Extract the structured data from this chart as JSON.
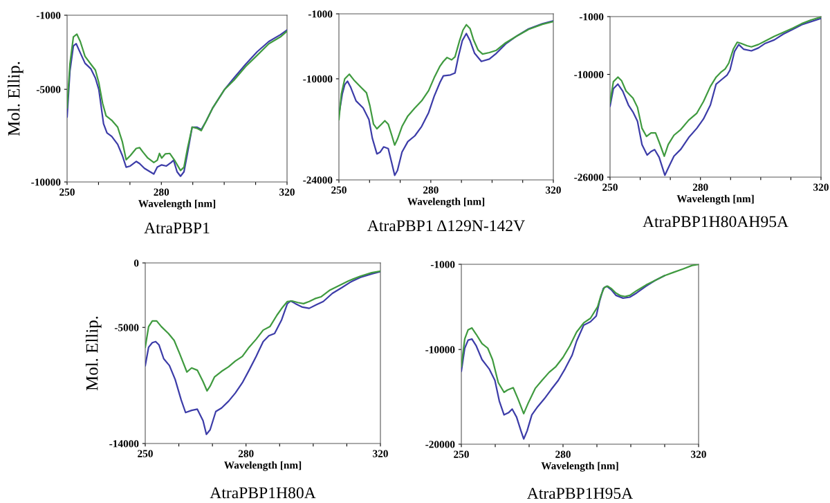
{
  "chart_data": [
    {
      "type": "line",
      "title": "AtraPBP1",
      "xlabel": "Wavelength [nm]",
      "ylabel": "Mol. Ellip.",
      "xlim": [
        250,
        320
      ],
      "ylim": [
        -10000,
        -1000
      ],
      "xticks": [
        250,
        {
          "value": 260,
          "label": null
        },
        {
          "value": 270,
          "label": null
        },
        280,
        {
          "value": 290,
          "label": null
        },
        {
          "value": 300,
          "label": null
        },
        {
          "value": 310,
          "label": null
        },
        320
      ],
      "yticks": [
        -10000,
        -5000,
        -1000
      ],
      "grid": false,
      "line_style": "solid",
      "series": [
        {
          "color": "#3f9a3f",
          "x": [
            250.0,
            250.9,
            252.0,
            253.1,
            254.2,
            255.7,
            257.6,
            259.0,
            260.1,
            261.3,
            262.4,
            264.2,
            266.1,
            267.6,
            268.8,
            270.1,
            272.0,
            273.1,
            274.2,
            275.7,
            277.6,
            278.7,
            279.4,
            280.1,
            281.3,
            282.7,
            284.2,
            286.1,
            287.2,
            288.3,
            289.8,
            291.3,
            292.7,
            294.2,
            296.4,
            300.1,
            303.1,
            306.8,
            310.5,
            314.2,
            317.9,
            320.0
          ],
          "values": [
            -6000,
            -3650,
            -2170,
            -2020,
            -2420,
            -3220,
            -3650,
            -3960,
            -4640,
            -5750,
            -6430,
            -6670,
            -7040,
            -7840,
            -8800,
            -8580,
            -8190,
            -8150,
            -8400,
            -8710,
            -8950,
            -8830,
            -8460,
            -8710,
            -8480,
            -8460,
            -8830,
            -9380,
            -9200,
            -8210,
            -7040,
            -7100,
            -7230,
            -6730,
            -5990,
            -5010,
            -4510,
            -3770,
            -3160,
            -2540,
            -2170,
            -1860
          ]
        },
        {
          "color": "#3c3ca8",
          "x": [
            250.0,
            250.9,
            252.0,
            252.9,
            254.2,
            255.7,
            257.6,
            259.0,
            260.1,
            261.6,
            262.7,
            264.2,
            266.1,
            267.6,
            268.8,
            270.1,
            272.0,
            273.1,
            274.6,
            276.4,
            277.6,
            278.7,
            280.1,
            281.6,
            283.1,
            283.9,
            285.0,
            286.1,
            287.2,
            288.3,
            289.8,
            291.3,
            292.7,
            294.2,
            296.4,
            300.1,
            303.1,
            306.8,
            310.5,
            314.2,
            317.9,
            320.0
          ],
          "values": [
            -6490,
            -4020,
            -2660,
            -2540,
            -3030,
            -3590,
            -3900,
            -4390,
            -5010,
            -6860,
            -7350,
            -7540,
            -7970,
            -8580,
            -9200,
            -9140,
            -8890,
            -9010,
            -9260,
            -9450,
            -9570,
            -9200,
            -9080,
            -9140,
            -8950,
            -8830,
            -9450,
            -9690,
            -9450,
            -8460,
            -7040,
            -7040,
            -7170,
            -6730,
            -5990,
            -5010,
            -4390,
            -3650,
            -2970,
            -2420,
            -2050,
            -1800
          ]
        }
      ]
    },
    {
      "type": "line",
      "title": "AtraPBP1 Δ129N-142V",
      "xlabel": "Wavelength [nm]",
      "xlim": [
        250,
        320
      ],
      "ylim": [
        -24000,
        -1000
      ],
      "xticks": [
        250,
        {
          "value": 260,
          "label": null
        },
        {
          "value": 270,
          "label": null
        },
        280,
        {
          "value": 290,
          "label": null
        },
        {
          "value": 300,
          "label": null
        },
        {
          "value": 310,
          "label": null
        },
        320
      ],
      "yticks": [
        -24000,
        -10000,
        -1000
      ],
      "grid": false,
      "line_style": "solid",
      "series": [
        {
          "color": "#3f9a3f",
          "x": [
            250.0,
            250.8,
            251.9,
            253.4,
            254.9,
            257.1,
            259.0,
            260.1,
            261.3,
            262.4,
            263.9,
            265.0,
            266.1,
            267.3,
            268.2,
            269.1,
            270.6,
            272.5,
            274.8,
            277.0,
            279.3,
            281.1,
            283.0,
            284.1,
            285.3,
            286.8,
            287.9,
            289.4,
            290.5,
            291.6,
            292.8,
            293.9,
            295.4,
            296.9,
            299.1,
            301.4,
            304.4,
            308.1,
            311.9,
            316.4,
            320.0
          ],
          "values": [
            -15640,
            -12100,
            -10010,
            -9360,
            -10170,
            -11130,
            -11940,
            -13710,
            -16280,
            -16920,
            -16280,
            -15800,
            -16280,
            -17890,
            -19180,
            -18370,
            -16600,
            -15150,
            -14030,
            -13060,
            -11620,
            -9850,
            -8240,
            -7590,
            -7050,
            -7370,
            -6950,
            -4700,
            -3250,
            -2510,
            -3030,
            -4540,
            -5990,
            -6570,
            -6370,
            -6050,
            -5020,
            -4060,
            -3160,
            -2450,
            -2060
          ]
        },
        {
          "color": "#3c3ca8",
          "x": [
            250.0,
            251.1,
            251.9,
            252.8,
            253.8,
            255.6,
            257.9,
            259.8,
            260.9,
            262.4,
            263.5,
            264.6,
            266.1,
            267.3,
            268.2,
            269.1,
            270.6,
            272.5,
            274.8,
            277.0,
            279.3,
            281.1,
            283.0,
            284.1,
            286.4,
            287.9,
            289.0,
            290.3,
            291.6,
            292.8,
            294.3,
            296.5,
            299.1,
            301.4,
            304.4,
            308.1,
            311.9,
            316.4,
            320.0
          ],
          "values": [
            -14990,
            -12100,
            -10810,
            -10330,
            -11130,
            -13060,
            -14030,
            -15640,
            -18210,
            -20400,
            -20140,
            -19430,
            -19660,
            -21750,
            -23360,
            -22710,
            -20140,
            -18690,
            -17890,
            -16600,
            -14670,
            -12420,
            -10490,
            -9590,
            -9460,
            -9200,
            -6950,
            -4700,
            -3730,
            -4700,
            -6470,
            -7590,
            -7270,
            -6470,
            -5180,
            -4060,
            -3090,
            -2380,
            -1970
          ]
        }
      ]
    },
    {
      "type": "line",
      "title": "AtraPBP1H80AH95A",
      "xlabel": "Wavelength [nm]",
      "xlim": [
        250,
        320
      ],
      "ylim": [
        -26000,
        -1000
      ],
      "xticks": [
        250,
        {
          "value": 260,
          "label": null
        },
        {
          "value": 270,
          "label": null
        },
        280,
        {
          "value": 290,
          "label": null
        },
        {
          "value": 300,
          "label": null
        },
        {
          "value": 310,
          "label": null
        },
        320
      ],
      "yticks": [
        -26000,
        -10000,
        -1000
      ],
      "grid": false,
      "line_style": "solid",
      "series": [
        {
          "color": "#3f9a3f",
          "x": [
            250.0,
            251.1,
            252.6,
            253.8,
            255.3,
            257.6,
            259.1,
            260.6,
            262.1,
            263.6,
            265.1,
            266.3,
            268.0,
            269.3,
            271.2,
            273.5,
            276.1,
            278.8,
            281.0,
            283.3,
            285.2,
            286.7,
            288.2,
            289.4,
            290.9,
            292.2,
            293.5,
            295.4,
            296.9,
            299.2,
            301.5,
            304.5,
            307.5,
            310.6,
            313.6,
            316.6,
            320.0
          ],
          "values": [
            -14410,
            -11140,
            -10420,
            -10960,
            -12590,
            -13680,
            -15130,
            -18390,
            -19660,
            -19120,
            -19120,
            -20560,
            -22740,
            -20930,
            -19480,
            -18570,
            -17120,
            -16040,
            -14220,
            -11870,
            -10420,
            -9700,
            -9150,
            -8250,
            -6070,
            -4990,
            -5170,
            -5530,
            -5710,
            -5350,
            -4800,
            -4080,
            -3460,
            -2810,
            -2090,
            -1540,
            -1070
          ]
        },
        {
          "color": "#3c3ca8",
          "x": [
            250.0,
            251.1,
            252.6,
            254.2,
            256.1,
            257.6,
            259.1,
            260.6,
            262.3,
            263.6,
            264.8,
            266.3,
            268.2,
            269.7,
            271.2,
            273.5,
            276.1,
            278.8,
            281.0,
            283.3,
            285.2,
            287.1,
            288.8,
            289.8,
            291.3,
            292.7,
            294.3,
            296.9,
            299.2,
            301.5,
            304.5,
            307.5,
            310.6,
            313.6,
            316.6,
            320.0
          ],
          "values": [
            -14950,
            -12230,
            -11510,
            -12590,
            -14770,
            -15850,
            -17300,
            -20930,
            -22560,
            -22010,
            -21720,
            -22920,
            -25710,
            -24190,
            -22740,
            -21650,
            -19840,
            -18390,
            -16940,
            -14770,
            -11510,
            -10780,
            -10130,
            -9330,
            -6430,
            -5350,
            -6070,
            -6330,
            -5890,
            -5170,
            -4620,
            -3720,
            -2990,
            -2270,
            -1800,
            -1290
          ]
        }
      ]
    },
    {
      "type": "line",
      "title": "AtraPBP1H80A",
      "xlabel": "Wavelength [nm]",
      "ylabel": "Mol. Ellip.",
      "xlim": [
        250,
        320
      ],
      "ylim": [
        -14000,
        0
      ],
      "xticks": [
        250,
        {
          "value": 260,
          "label": null
        },
        {
          "value": 270,
          "label": null
        },
        280,
        {
          "value": 290,
          "label": null
        },
        {
          "value": 300,
          "label": null
        },
        {
          "value": 310,
          "label": null
        },
        320
      ],
      "yticks": [
        -14000,
        -5000,
        0
      ],
      "grid": false,
      "line_style": "solid",
      "series": [
        {
          "color": "#3f9a3f",
          "x": [
            250.0,
            251.0,
            252.1,
            253.4,
            254.8,
            256.9,
            258.6,
            260.3,
            262.4,
            263.8,
            265.5,
            267.2,
            268.4,
            269.3,
            270.6,
            272.7,
            274.8,
            276.8,
            278.9,
            280.9,
            283.0,
            285.1,
            287.1,
            289.2,
            290.9,
            292.3,
            293.7,
            295.4,
            297.1,
            298.8,
            300.5,
            302.3,
            305.0,
            307.8,
            310.5,
            314.0,
            317.4,
            320.0
          ],
          "values": [
            -6540,
            -4940,
            -4500,
            -4500,
            -4940,
            -5470,
            -6010,
            -7070,
            -8460,
            -8140,
            -8320,
            -9200,
            -9920,
            -9560,
            -8850,
            -8410,
            -8050,
            -7610,
            -7250,
            -6540,
            -5920,
            -5210,
            -4940,
            -4050,
            -3430,
            -2990,
            -2950,
            -3070,
            -3160,
            -2990,
            -2770,
            -2630,
            -2100,
            -1740,
            -1390,
            -1030,
            -760,
            -640
          ]
        },
        {
          "color": "#3c3ca8",
          "x": [
            250.0,
            251.0,
            252.1,
            253.1,
            254.1,
            255.5,
            257.2,
            258.9,
            260.7,
            262.0,
            263.8,
            265.5,
            267.2,
            268.2,
            269.3,
            271.0,
            272.7,
            274.8,
            276.8,
            278.9,
            280.9,
            283.0,
            285.1,
            286.8,
            288.5,
            290.6,
            292.3,
            293.3,
            294.7,
            296.8,
            298.8,
            300.9,
            303.0,
            305.7,
            308.5,
            311.2,
            314.0,
            317.4,
            320.0
          ],
          "values": [
            -7960,
            -6540,
            -6180,
            -6100,
            -6360,
            -7430,
            -7960,
            -9030,
            -10630,
            -11600,
            -11430,
            -11340,
            -12230,
            -13290,
            -12940,
            -11520,
            -11250,
            -10720,
            -10090,
            -9290,
            -8320,
            -7250,
            -6100,
            -5650,
            -5470,
            -4410,
            -3160,
            -2950,
            -3160,
            -3430,
            -3520,
            -3250,
            -2990,
            -2360,
            -1920,
            -1470,
            -1120,
            -850,
            -680
          ]
        }
      ]
    },
    {
      "type": "line",
      "title": "AtraPBP1H95A",
      "xlabel": "Wavelength [nm]",
      "xlim": [
        250,
        320
      ],
      "ylim": [
        -20000,
        -1000
      ],
      "xticks": [
        250,
        {
          "value": 260,
          "label": null
        },
        {
          "value": 270,
          "label": null
        },
        280,
        {
          "value": 290,
          "label": null
        },
        {
          "value": 300,
          "label": null
        },
        {
          "value": 310,
          "label": null
        },
        320
      ],
      "yticks": [
        -20000,
        -10000,
        -1000
      ],
      "grid": false,
      "line_style": "solid",
      "series": [
        {
          "color": "#3f9a3f",
          "x": [
            250.0,
            251.0,
            252.0,
            253.1,
            254.4,
            256.1,
            257.8,
            259.2,
            260.9,
            262.6,
            263.6,
            265.3,
            266.7,
            268.4,
            269.7,
            271.8,
            273.8,
            275.9,
            277.9,
            280.0,
            282.0,
            284.0,
            286.1,
            288.1,
            290.2,
            291.2,
            292.2,
            293.2,
            294.2,
            295.6,
            297.0,
            298.3,
            299.7,
            301.7,
            304.5,
            307.2,
            309.9,
            312.6,
            315.4,
            318.1,
            320.0
          ],
          "values": [
            -11800,
            -8890,
            -7920,
            -7720,
            -8400,
            -9370,
            -9860,
            -11070,
            -13500,
            -14520,
            -14280,
            -14030,
            -15200,
            -16780,
            -15680,
            -14110,
            -13260,
            -12410,
            -11800,
            -10830,
            -9620,
            -8160,
            -7190,
            -6700,
            -5490,
            -4280,
            -3430,
            -3310,
            -3550,
            -4030,
            -4320,
            -4400,
            -4280,
            -3790,
            -3180,
            -2700,
            -2210,
            -1850,
            -1490,
            -1120,
            -1000
          ]
        },
        {
          "color": "#3c3ca8",
          "x": [
            250.0,
            251.0,
            252.0,
            253.1,
            254.4,
            256.1,
            258.2,
            259.9,
            261.2,
            262.6,
            264.0,
            265.0,
            266.3,
            267.6,
            268.4,
            269.4,
            270.8,
            272.5,
            274.5,
            276.5,
            278.6,
            280.6,
            282.7,
            284.0,
            286.1,
            288.1,
            289.8,
            290.8,
            291.9,
            292.9,
            294.2,
            295.6,
            297.7,
            299.7,
            301.7,
            304.5,
            307.2,
            309.9
          ],
          "values": [
            -12290,
            -9860,
            -9010,
            -8890,
            -9620,
            -11070,
            -12040,
            -13260,
            -15440,
            -16900,
            -16650,
            -16290,
            -17140,
            -18600,
            -19450,
            -18600,
            -16900,
            -16050,
            -15200,
            -14230,
            -13260,
            -12040,
            -10590,
            -9130,
            -7430,
            -7070,
            -6460,
            -4880,
            -3550,
            -3310,
            -3670,
            -4280,
            -4570,
            -4470,
            -4030,
            -3310,
            -2700,
            -2210
          ]
        }
      ]
    }
  ]
}
